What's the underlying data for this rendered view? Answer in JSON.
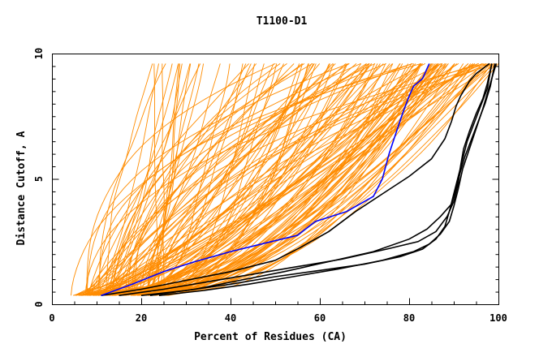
{
  "chart_data": {
    "type": "line",
    "title": "T1100-D1",
    "xlabel": "Percent of Residues (CA)",
    "ylabel": "Distance Cutoff, A",
    "xlim": [
      0,
      100
    ],
    "ylim": [
      0,
      10
    ],
    "x_ticks": [
      0,
      20,
      40,
      60,
      80,
      100
    ],
    "y_ticks": [
      0,
      5,
      10
    ],
    "grid": false,
    "legend": "none",
    "colors": {
      "background_models": "#FF8C00",
      "highlight_blue": "#0000FF",
      "highlight_black": "#000000"
    },
    "background_series_count": 140,
    "series": [
      {
        "color": "#0000FF",
        "x": [
          11,
          18,
          25,
          32,
          40,
          48,
          55,
          59,
          66,
          72,
          74,
          75.5,
          77,
          78.5,
          80,
          81,
          83,
          84.5
        ],
        "y": [
          0.35,
          0.8,
          1.3,
          1.7,
          2.1,
          2.45,
          2.75,
          3.3,
          3.7,
          4.3,
          5.0,
          6.0,
          6.8,
          7.6,
          8.3,
          8.7,
          9.0,
          9.6
        ]
      },
      {
        "color": "#000000",
        "x": [
          11,
          20,
          30,
          40,
          50,
          56,
          62,
          68,
          74,
          80,
          85,
          88,
          89.5,
          90.5,
          91.5,
          92.5,
          93.5,
          95,
          96.5,
          98
        ],
        "y": [
          0.35,
          0.6,
          0.95,
          1.3,
          1.75,
          2.3,
          2.9,
          3.7,
          4.4,
          5.1,
          5.8,
          6.6,
          7.3,
          7.9,
          8.3,
          8.6,
          8.9,
          9.2,
          9.4,
          9.6
        ]
      },
      {
        "color": "#000000",
        "x": [
          15,
          25,
          35,
          45,
          55,
          65,
          75,
          82,
          86,
          88.5,
          90,
          91,
          91.5,
          92.2,
          93.5,
          95,
          96.5,
          97.5,
          98.5
        ],
        "y": [
          0.35,
          0.6,
          0.9,
          1.2,
          1.5,
          1.8,
          2.2,
          2.5,
          2.9,
          3.5,
          4.1,
          4.8,
          5.5,
          6.2,
          6.9,
          7.6,
          8.2,
          8.8,
          9.6
        ]
      },
      {
        "color": "#000000",
        "x": [
          20,
          30,
          40,
          50,
          60,
          70,
          78,
          83,
          86,
          88,
          89,
          90,
          91,
          92,
          93,
          94.5,
          96,
          97.5,
          98.5
        ],
        "y": [
          0.35,
          0.55,
          0.8,
          1.1,
          1.35,
          1.6,
          1.9,
          2.2,
          2.6,
          3.1,
          3.7,
          4.4,
          5.1,
          5.8,
          6.5,
          7.2,
          7.9,
          8.6,
          9.6
        ]
      },
      {
        "color": "#000000",
        "x": [
          22,
          32,
          42,
          52,
          62,
          72,
          80,
          84,
          87,
          89.5,
          90.5,
          91.5,
          92.5,
          94,
          95.5,
          97,
          98.2,
          99.2
        ],
        "y": [
          0.35,
          0.6,
          0.95,
          1.3,
          1.7,
          2.1,
          2.6,
          3.0,
          3.5,
          4.0,
          4.6,
          5.3,
          5.9,
          6.6,
          7.3,
          8.0,
          8.7,
          9.6
        ]
      },
      {
        "color": "#000000",
        "x": [
          24,
          34,
          44,
          54,
          64,
          74,
          81,
          84.5,
          87,
          89,
          90,
          91,
          92,
          93.5,
          95,
          96.5,
          98,
          99.5
        ],
        "y": [
          0.35,
          0.55,
          0.8,
          1.1,
          1.4,
          1.75,
          2.1,
          2.4,
          2.8,
          3.3,
          3.9,
          4.6,
          5.4,
          6.2,
          7.0,
          7.8,
          8.7,
          9.6
        ]
      }
    ]
  }
}
